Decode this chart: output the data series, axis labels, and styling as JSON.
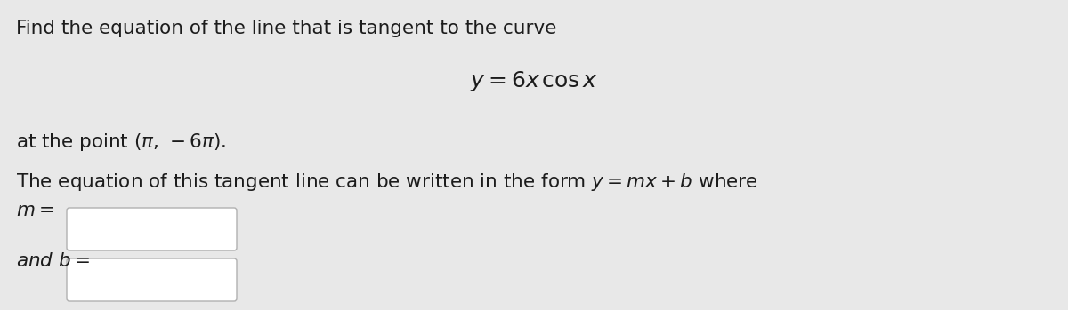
{
  "background_color": "#e8e8e8",
  "text_color": "#1c1c1c",
  "line1": "Find the equation of the line that is tangent to the curve",
  "line2_math": "$y = 6x\\,\\cos x$",
  "line3": "at the point $(\\pi,\\,-6\\pi)$.",
  "line4_text": "The equation of this tangent line can be written in the form $y = mx + b$ where",
  "label_m": "$m = $",
  "label_b": "and $b = $",
  "box_facecolor": "#ffffff",
  "box_edgecolor": "#b0b0b0",
  "font_size_main": 15.5,
  "font_size_math_center": 18
}
